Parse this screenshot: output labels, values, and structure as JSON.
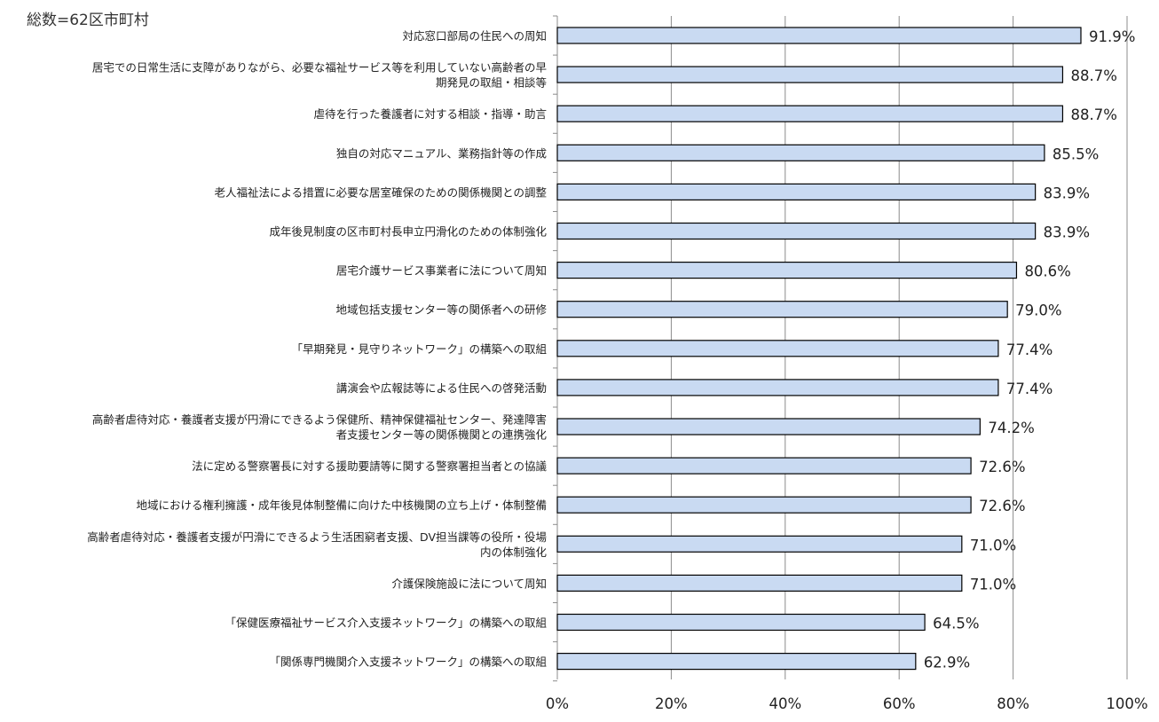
{
  "chart_data": {
    "type": "bar",
    "orientation": "horizontal",
    "note": "総数=62区市町村",
    "categories": [
      [
        "対応窓口部局の住民への周知"
      ],
      [
        "居宅での日常生活に支障がありながら、必要な福祉サービス等を利用していない高齢者の早",
        "期発見の取組・相談等"
      ],
      [
        "虐待を行った養護者に対する相談・指導・助言"
      ],
      [
        "独自の対応マニュアル、業務指針等の作成"
      ],
      [
        "老人福祉法による措置に必要な居室確保のための関係機関との調整"
      ],
      [
        "成年後見制度の区市町村長申立円滑化のための体制強化"
      ],
      [
        "居宅介護サービス事業者に法について周知"
      ],
      [
        "地域包括支援センター等の関係者への研修"
      ],
      [
        "「早期発見・見守りネットワーク」の構築への取組"
      ],
      [
        "講演会や広報誌等による住民への啓発活動"
      ],
      [
        "高齢者虐待対応・養護者支援が円滑にできるよう保健所、精神保健福祉センター、発達障害",
        "者支援センター等の関係機関との連携強化"
      ],
      [
        "法に定める警察署長に対する援助要請等に関する警察署担当者との協議"
      ],
      [
        "地域における権利擁護・成年後見体制整備に向けた中核機関の立ち上げ・体制整備"
      ],
      [
        "高齢者虐待対応・養護者支援が円滑にできるよう生活困窮者支援、DV担当課等の役所・役場",
        "内の体制強化"
      ],
      [
        "介護保険施設に法について周知"
      ],
      [
        "「保健医療福祉サービス介入支援ネットワーク」の構築への取組"
      ],
      [
        "「関係専門機関介入支援ネットワーク」の構築への取組"
      ]
    ],
    "values": [
      91.9,
      88.7,
      88.7,
      85.5,
      83.9,
      83.9,
      80.6,
      79.0,
      77.4,
      77.4,
      74.2,
      72.6,
      72.6,
      71.0,
      71.0,
      64.5,
      62.9
    ],
    "value_labels": [
      "91.9%",
      "88.7%",
      "88.7%",
      "85.5%",
      "83.9%",
      "83.9%",
      "80.6%",
      "79.0%",
      "77.4%",
      "77.4%",
      "74.2%",
      "72.6%",
      "72.6%",
      "71.0%",
      "71.0%",
      "64.5%",
      "62.9%"
    ],
    "x_ticks": [
      0,
      20,
      40,
      60,
      80,
      100
    ],
    "x_tick_labels": [
      "0%",
      "20%",
      "40%",
      "60%",
      "80%",
      "100%"
    ],
    "xlim": [
      0,
      100
    ],
    "title": "",
    "xlabel": "",
    "ylabel": "",
    "grid": "vertical",
    "legend": "none",
    "colors": {
      "bar_fill": "#c9daf2",
      "bar_stroke": "#000000",
      "grid": "#8c8c8c",
      "axis": "#8c8c8c",
      "text": "#222222"
    }
  }
}
